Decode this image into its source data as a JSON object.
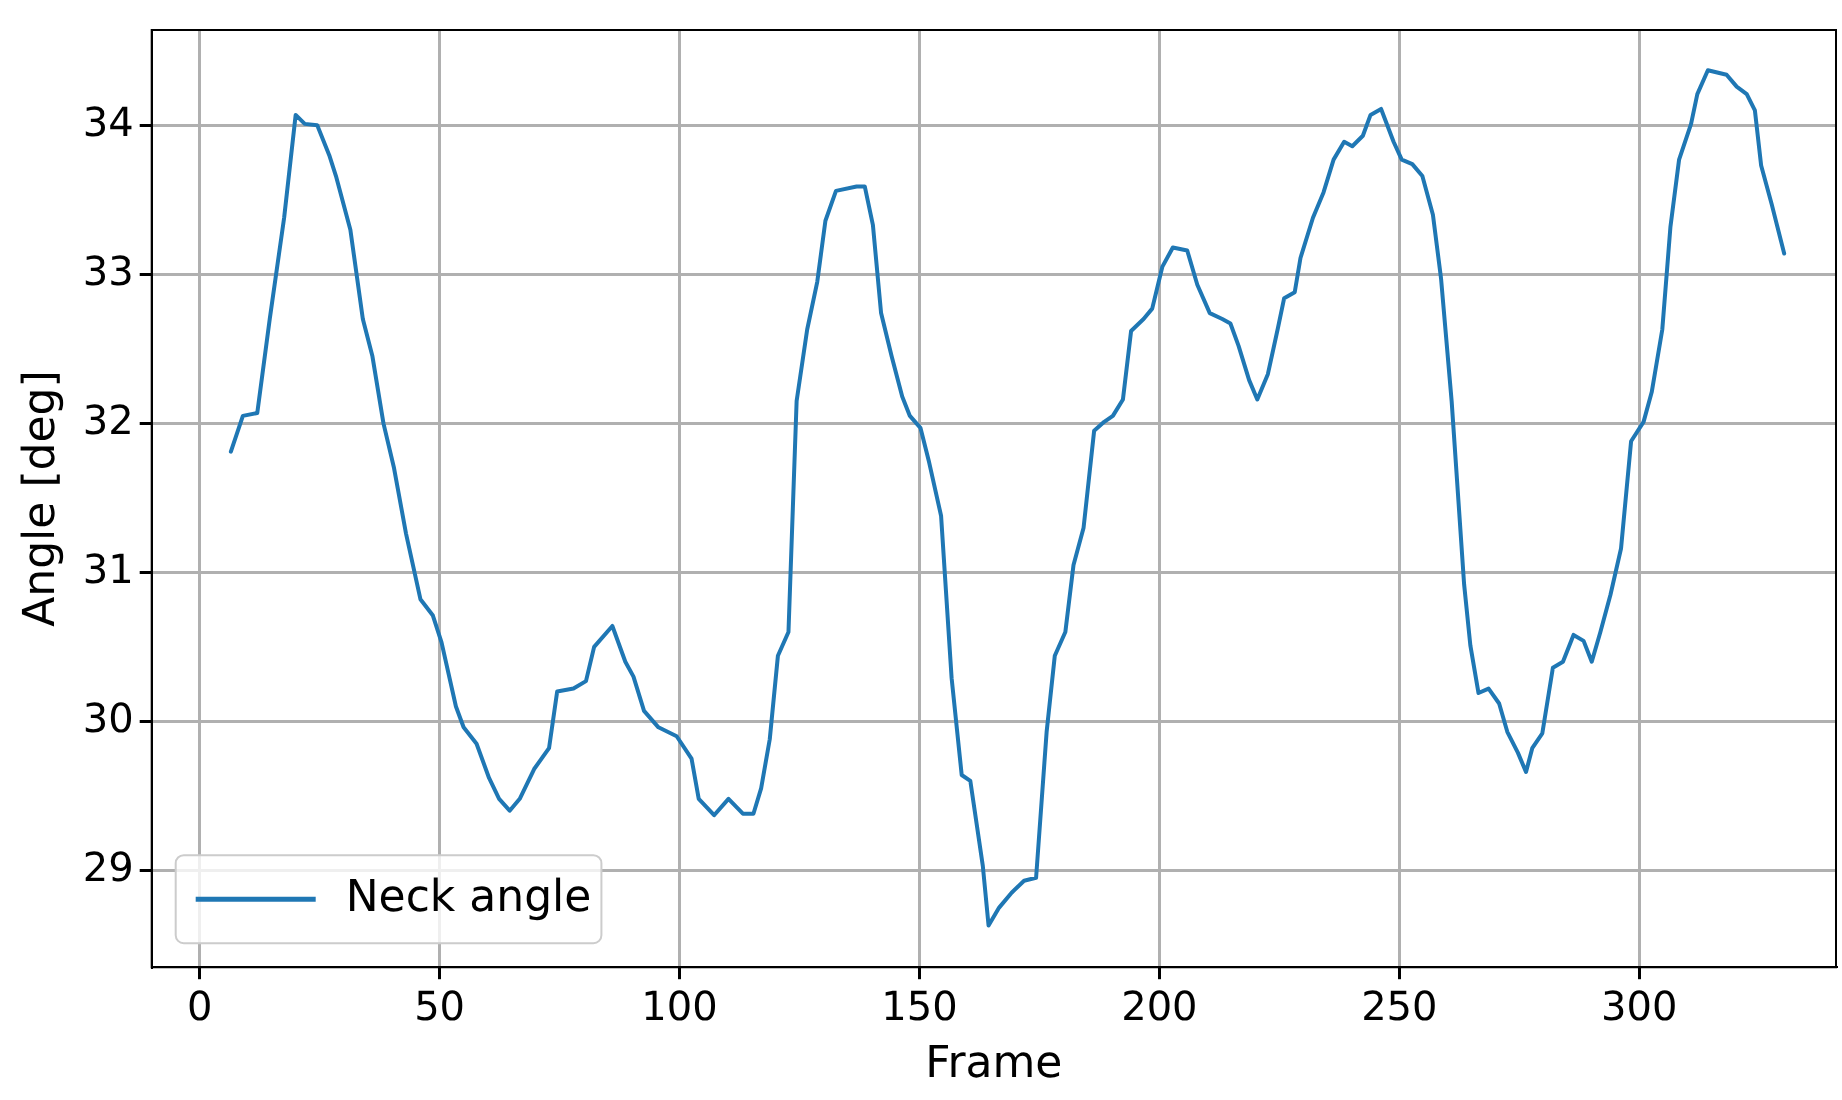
{
  "chart_data": {
    "type": "line",
    "xlabel": "Frame",
    "ylabel": "Angle [deg]",
    "xlim": [
      -10,
      341
    ],
    "ylim": [
      28.35,
      34.64
    ],
    "xticks": [
      0,
      50,
      100,
      150,
      200,
      250,
      300
    ],
    "yticks": [
      29,
      30,
      31,
      32,
      33,
      34
    ],
    "grid": true,
    "legend": "bottom left",
    "marker": "none",
    "line_style": "solid",
    "series": [
      {
        "name": "Neck angle",
        "color": "#1f77b4",
        "x": [
          6.5,
          9,
          12,
          14.6,
          17.6,
          20,
          21.9,
          24.5,
          27,
          28.4,
          31.4,
          34,
          36,
          38.3,
          40.5,
          43,
          46,
          48.6,
          50.4,
          53.4,
          55,
          57.7,
          60.3,
          62.4,
          64.6,
          66.7,
          69.7,
          72.8,
          74.5,
          77.9,
          80.5,
          82.2,
          86,
          88.7,
          90.4,
          92.6,
          95.6,
          99.4,
          102.5,
          104,
          107.2,
          110.2,
          113.2,
          115.4,
          117,
          118.8,
          120.5,
          122.7,
          124.4,
          126.6,
          128.7,
          130.4,
          132.6,
          136.9,
          138.6,
          140.3,
          142,
          144.2,
          146.4,
          148,
          150.2,
          152,
          154.5,
          156.7,
          158.8,
          160.6,
          163.2,
          164.4,
          166.6,
          169.2,
          171.8,
          174.3,
          176.5,
          178.2,
          180.4,
          182.1,
          184.2,
          186.4,
          188.5,
          190.3,
          192.4,
          194.1,
          196.7,
          198.5,
          200.6,
          202.8,
          205.8,
          207.9,
          210.5,
          213.1,
          214.8,
          216.5,
          218.7,
          220.4,
          222.6,
          224.7,
          226,
          228.2,
          229.4,
          232,
          234.2,
          236.3,
          238.5,
          240.2,
          242.4,
          244,
          246.2,
          248.8,
          250.5,
          252.7,
          254.8,
          257,
          258.7,
          260.9,
          263.5,
          264.8,
          266.5,
          268.6,
          270.8,
          272.5,
          274.7,
          276.4,
          277.7,
          279.8,
          282,
          284.1,
          286.3,
          288.4,
          290.1,
          291.9,
          294,
          296.2,
          298.3,
          300.9,
          302.6,
          304.8,
          306.5,
          308.3,
          310.8,
          312.1,
          314.3,
          318.2,
          320.3,
          322.4,
          324.1,
          325.4,
          327.6,
          330.2
        ],
        "values": [
          31.81,
          32.05,
          32.07,
          32.7,
          33.38,
          34.07,
          34.01,
          34.0,
          33.8,
          33.66,
          33.3,
          32.7,
          32.45,
          32.0,
          31.7,
          31.26,
          30.82,
          30.71,
          30.53,
          30.1,
          29.96,
          29.85,
          29.62,
          29.48,
          29.4,
          29.48,
          29.68,
          29.82,
          30.2,
          30.22,
          30.27,
          30.5,
          30.64,
          30.4,
          30.3,
          30.07,
          29.96,
          29.9,
          29.75,
          29.48,
          29.37,
          29.48,
          29.38,
          29.38,
          29.55,
          29.88,
          30.44,
          30.6,
          32.15,
          32.63,
          32.95,
          33.36,
          33.56,
          33.59,
          33.59,
          33.33,
          32.74,
          32.45,
          32.18,
          32.05,
          31.97,
          31.74,
          31.38,
          30.29,
          29.64,
          29.6,
          29.03,
          28.63,
          28.75,
          28.85,
          28.93,
          28.95,
          29.93,
          30.44,
          30.6,
          31.05,
          31.3,
          31.95,
          32.01,
          32.05,
          32.16,
          32.62,
          32.7,
          32.77,
          33.05,
          33.18,
          33.16,
          32.93,
          32.74,
          32.7,
          32.67,
          32.52,
          32.29,
          32.16,
          32.33,
          32.64,
          32.84,
          32.88,
          33.11,
          33.38,
          33.55,
          33.77,
          33.89,
          33.86,
          33.93,
          34.07,
          34.11,
          33.89,
          33.77,
          33.74,
          33.66,
          33.4,
          32.97,
          32.15,
          30.92,
          30.51,
          30.19,
          30.22,
          30.12,
          29.93,
          29.79,
          29.66,
          29.82,
          29.92,
          30.36,
          30.4,
          30.58,
          30.54,
          30.4,
          30.6,
          30.85,
          31.16,
          31.88,
          32.01,
          32.21,
          32.63,
          33.32,
          33.77,
          34.01,
          34.21,
          34.37,
          34.34,
          34.26,
          34.21,
          34.1,
          33.73,
          33.47,
          33.14
        ]
      }
    ]
  }
}
